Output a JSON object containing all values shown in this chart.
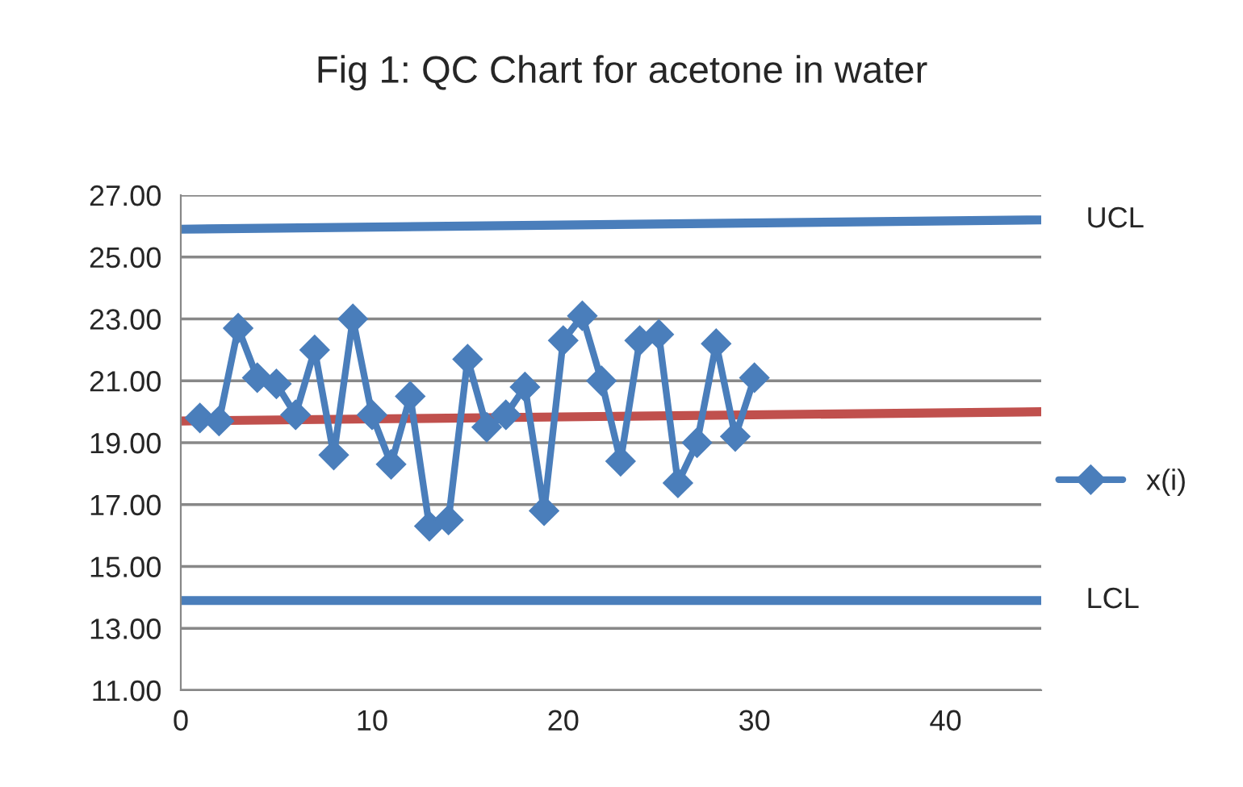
{
  "chart_data": {
    "type": "line",
    "title": "Fig 1: QC Chart for acetone in water",
    "series": [
      {
        "name": "x(i)",
        "color": "#4a7ebb",
        "marker": "diamond",
        "x": [
          1,
          2,
          3,
          4,
          5,
          6,
          7,
          8,
          9,
          10,
          11,
          12,
          13,
          14,
          15,
          16,
          17,
          18,
          19,
          20,
          21,
          22,
          23,
          24,
          25,
          26,
          27,
          28,
          29,
          30
        ],
        "values": [
          19.8,
          19.7,
          22.7,
          21.1,
          20.9,
          19.9,
          22.0,
          18.6,
          23.0,
          19.9,
          18.3,
          20.5,
          16.3,
          16.5,
          21.7,
          19.5,
          19.9,
          20.8,
          16.8,
          22.3,
          23.1,
          21.0,
          18.4,
          22.3,
          22.5,
          17.7,
          19.0,
          22.2,
          19.2,
          21.1
        ]
      },
      {
        "name": "UCL",
        "color": "#4a7ebb",
        "marker": "none",
        "x": [
          0,
          45
        ],
        "values": [
          25.9,
          26.2
        ]
      },
      {
        "name": "LCL",
        "color": "#4a7ebb",
        "marker": "none",
        "x": [
          0,
          45
        ],
        "values": [
          13.9,
          13.9
        ]
      },
      {
        "color": "#c0504d",
        "marker": "none",
        "x": [
          0,
          45
        ],
        "values": [
          19.7,
          20.0
        ]
      }
    ],
    "xlim": [
      0,
      45
    ],
    "xticks": [
      0,
      10,
      20,
      30,
      40
    ],
    "ylim": [
      11,
      27
    ],
    "yticks": [
      {
        "value": 11,
        "label": "11.00"
      },
      {
        "value": 13,
        "label": "13.00"
      },
      {
        "value": 15,
        "label": "15.00"
      },
      {
        "value": 17,
        "label": "17.00"
      },
      {
        "value": 19,
        "label": "19.00"
      },
      {
        "value": 21,
        "label": "21.00"
      },
      {
        "value": 23,
        "label": "23.00"
      },
      {
        "value": 25,
        "label": "25.00"
      },
      {
        "value": 27,
        "label": "27.00"
      }
    ],
    "grid": "y",
    "legend": "right"
  }
}
